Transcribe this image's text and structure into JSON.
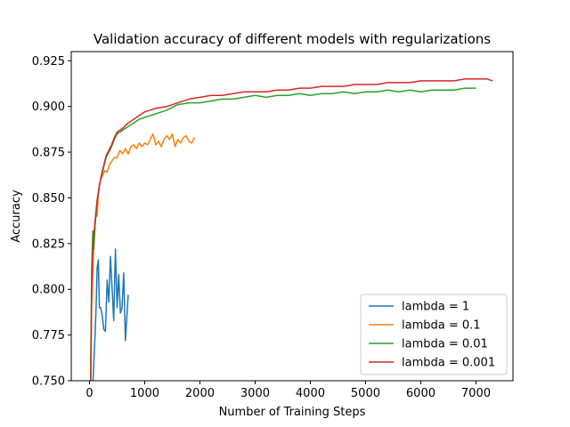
{
  "chart_data": {
    "type": "line",
    "title": "Validation accuracy of different models with regularizations",
    "xlabel": "Number of Training Steps",
    "ylabel": "Accuracy",
    "xlim": [
      -330,
      7670
    ],
    "ylim": [
      0.75,
      0.93
    ],
    "xticks": [
      0,
      1000,
      2000,
      3000,
      4000,
      5000,
      6000,
      7000
    ],
    "yticks": [
      0.75,
      0.775,
      0.8,
      0.825,
      0.85,
      0.875,
      0.9,
      0.925
    ],
    "xtick_labels": [
      "0",
      "1000",
      "2000",
      "3000",
      "4000",
      "5000",
      "6000",
      "7000"
    ],
    "ytick_labels": [
      "0.750",
      "0.775",
      "0.800",
      "0.825",
      "0.850",
      "0.875",
      "0.900",
      "0.925"
    ],
    "grid": false,
    "legend_position": "lower-right",
    "series": [
      {
        "name": "lambda = 1",
        "color": "#1f77b4",
        "x": [
          50,
          80,
          100,
          120,
          140,
          160,
          180,
          200,
          230,
          260,
          290,
          320,
          350,
          380,
          410,
          440,
          470,
          500,
          530,
          560,
          590,
          620,
          650,
          680,
          700
        ],
        "y": [
          0.74,
          0.76,
          0.775,
          0.79,
          0.812,
          0.816,
          0.79,
          0.79,
          0.786,
          0.778,
          0.777,
          0.805,
          0.793,
          0.818,
          0.8,
          0.783,
          0.822,
          0.79,
          0.808,
          0.787,
          0.79,
          0.809,
          0.772,
          0.786,
          0.797
        ]
      },
      {
        "name": "lambda = 0.1",
        "color": "#ff7f0e",
        "x": [
          20,
          40,
          60,
          80,
          100,
          120,
          140,
          160,
          180,
          200,
          240,
          280,
          320,
          360,
          400,
          450,
          500,
          550,
          600,
          650,
          700,
          750,
          800,
          850,
          900,
          950,
          1000,
          1050,
          1100,
          1150,
          1200,
          1250,
          1300,
          1350,
          1400,
          1450,
          1500,
          1550,
          1600,
          1650,
          1700,
          1750,
          1800,
          1850,
          1900
        ],
        "y": [
          0.74,
          0.79,
          0.81,
          0.825,
          0.835,
          0.843,
          0.84,
          0.852,
          0.856,
          0.86,
          0.862,
          0.865,
          0.864,
          0.868,
          0.87,
          0.872,
          0.872,
          0.876,
          0.874,
          0.877,
          0.874,
          0.878,
          0.879,
          0.877,
          0.88,
          0.878,
          0.88,
          0.879,
          0.882,
          0.885,
          0.879,
          0.881,
          0.878,
          0.882,
          0.884,
          0.882,
          0.885,
          0.878,
          0.882,
          0.88,
          0.883,
          0.884,
          0.881,
          0.88,
          0.883
        ]
      },
      {
        "name": "lambda = 0.01",
        "color": "#2ca02c",
        "x": [
          20,
          40,
          60,
          80,
          100,
          140,
          180,
          220,
          260,
          300,
          350,
          400,
          450,
          500,
          600,
          700,
          800,
          900,
          1000,
          1200,
          1400,
          1600,
          1800,
          2000,
          2200,
          2400,
          2600,
          2800,
          3000,
          3200,
          3400,
          3600,
          3800,
          4000,
          4200,
          4400,
          4600,
          4800,
          5000,
          5200,
          5400,
          5600,
          5800,
          6000,
          6200,
          6400,
          6600,
          6800,
          7000
        ],
        "y": [
          0.75,
          0.81,
          0.832,
          0.822,
          0.835,
          0.848,
          0.857,
          0.862,
          0.867,
          0.872,
          0.875,
          0.878,
          0.882,
          0.885,
          0.887,
          0.889,
          0.891,
          0.893,
          0.894,
          0.896,
          0.898,
          0.901,
          0.902,
          0.902,
          0.903,
          0.904,
          0.904,
          0.905,
          0.906,
          0.905,
          0.906,
          0.906,
          0.907,
          0.906,
          0.907,
          0.907,
          0.908,
          0.907,
          0.908,
          0.908,
          0.909,
          0.908,
          0.909,
          0.908,
          0.909,
          0.909,
          0.909,
          0.91,
          0.91
        ]
      },
      {
        "name": "lambda = 0.001",
        "color": "#d62728",
        "x": [
          20,
          40,
          60,
          80,
          100,
          140,
          180,
          220,
          260,
          300,
          350,
          400,
          450,
          500,
          600,
          700,
          800,
          900,
          1000,
          1200,
          1400,
          1600,
          1800,
          2000,
          2200,
          2400,
          2600,
          2800,
          3000,
          3200,
          3400,
          3600,
          3800,
          4000,
          4200,
          4400,
          4600,
          4800,
          5000,
          5200,
          5400,
          5600,
          5800,
          6000,
          6200,
          6400,
          6600,
          6800,
          7000,
          7200,
          7300
        ],
        "y": [
          0.74,
          0.8,
          0.82,
          0.83,
          0.837,
          0.849,
          0.857,
          0.863,
          0.868,
          0.873,
          0.876,
          0.879,
          0.883,
          0.886,
          0.888,
          0.891,
          0.893,
          0.895,
          0.897,
          0.899,
          0.9,
          0.902,
          0.904,
          0.905,
          0.906,
          0.906,
          0.907,
          0.908,
          0.908,
          0.908,
          0.909,
          0.909,
          0.91,
          0.91,
          0.911,
          0.911,
          0.911,
          0.912,
          0.912,
          0.912,
          0.913,
          0.913,
          0.913,
          0.914,
          0.914,
          0.914,
          0.914,
          0.915,
          0.915,
          0.915,
          0.914
        ]
      }
    ]
  }
}
